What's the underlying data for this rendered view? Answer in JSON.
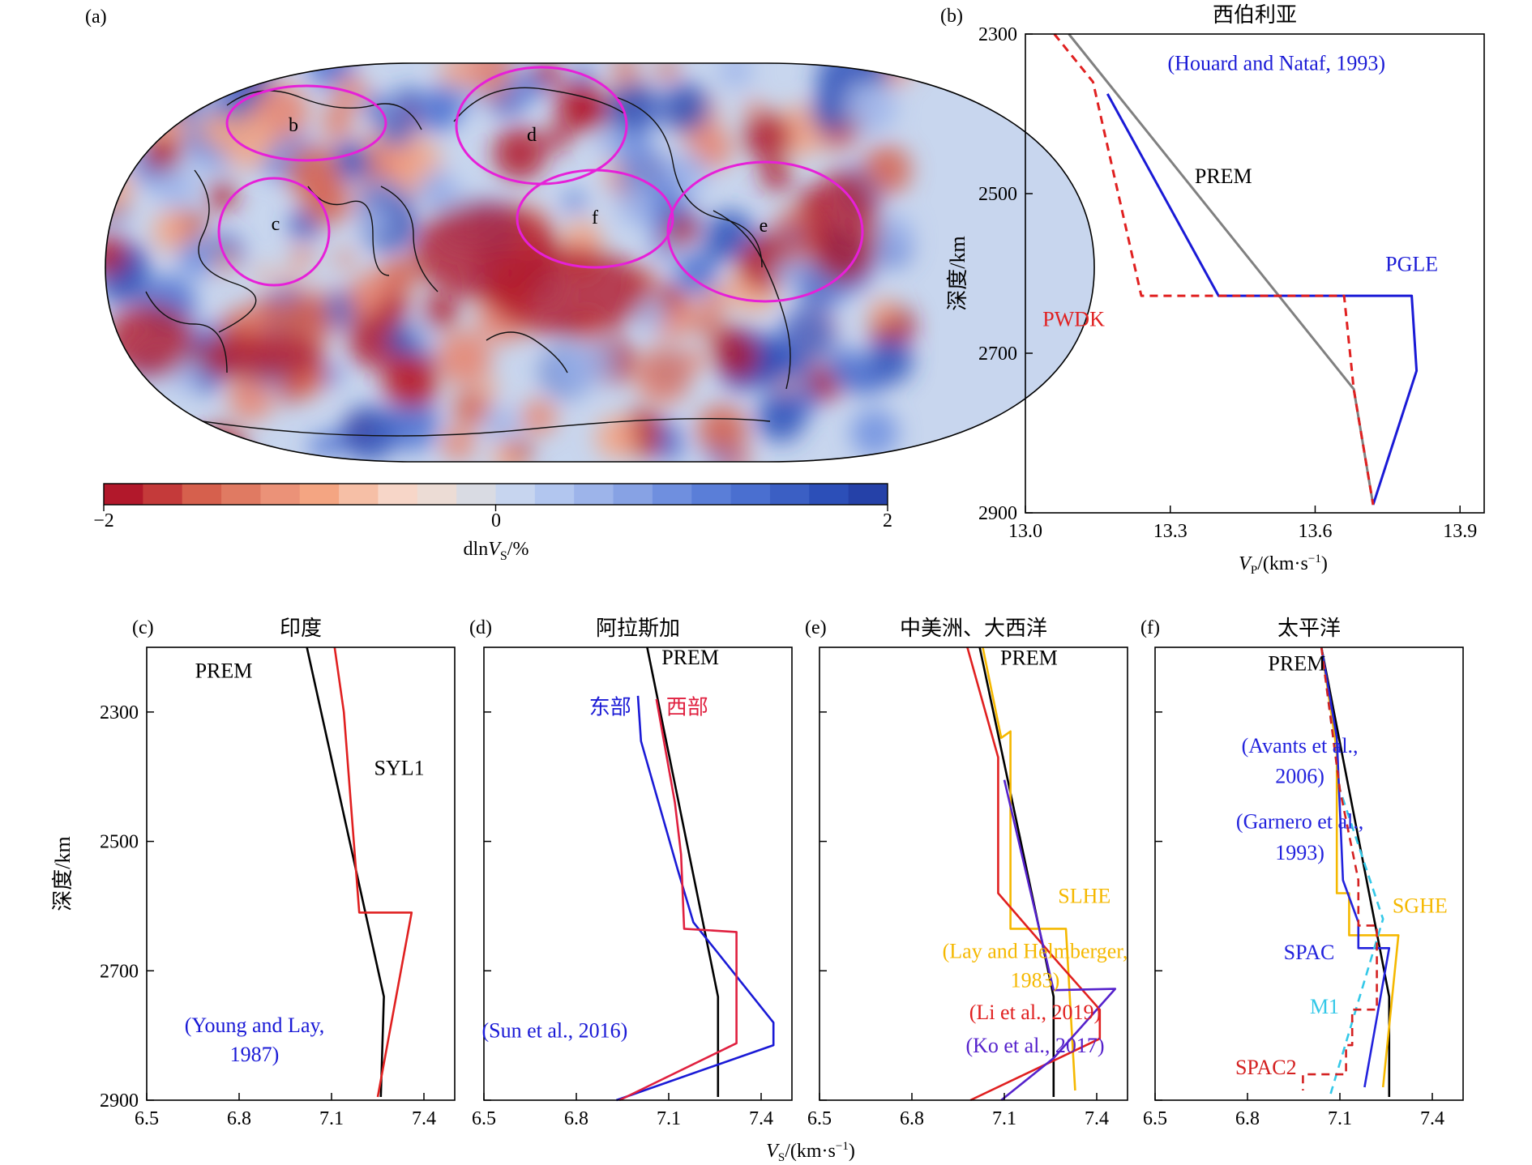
{
  "panel_a": {
    "label": "(a)",
    "region_labels": [
      "b",
      "c",
      "d",
      "e",
      "f"
    ],
    "colorbar": {
      "ticks": [
        "−2",
        "0",
        "2"
      ],
      "label_main": "dln",
      "label_var": "V",
      "label_sub": "S",
      "label_unit": "/%"
    }
  },
  "chart_data": [
    {
      "id": "b",
      "type": "line",
      "panel_label": "(b)",
      "title": "西伯利亚",
      "ylabel": "深度/km",
      "xlabel_var": "V",
      "xlabel_sub": "P",
      "xlabel_unit": "/(km·s",
      "xlabel_exp": "−1",
      "xlabel_close": ")",
      "xlim": [
        13.0,
        13.95
      ],
      "ylim": [
        2300,
        2900
      ],
      "y_inverted": true,
      "xticks": [
        13.0,
        13.3,
        13.6,
        13.9
      ],
      "xtick_labels": [
        "13.0",
        "13.3",
        "13.6",
        "13.9"
      ],
      "yticks": [
        2300,
        2500,
        2700,
        2900
      ],
      "ytick_labels": [
        "2300",
        "2500",
        "2700",
        "2900"
      ],
      "series": [
        {
          "name": "PREM",
          "color": "#808080",
          "dash": false,
          "x": [
            13.09,
            13.68,
            13.72
          ],
          "y": [
            2300,
            2745,
            2890
          ]
        },
        {
          "name": "PGLE",
          "color": "#1a1ad6",
          "dash": false,
          "x": [
            13.17,
            13.4,
            13.8,
            13.81,
            13.72
          ],
          "y": [
            2375,
            2628,
            2628,
            2722,
            2890
          ]
        },
        {
          "name": "PWDK",
          "color": "#e02020",
          "dash": true,
          "x": [
            13.06,
            13.14,
            13.24,
            13.66,
            13.68,
            13.72
          ],
          "y": [
            2300,
            2360,
            2628,
            2628,
            2745,
            2890
          ]
        }
      ],
      "annotations": [
        {
          "text": "(Houard and Nataf, 1993)",
          "color": "#1a1ad6",
          "x": 13.52,
          "y": 2345
        },
        {
          "text": "PREM",
          "color": "#000000",
          "x": 13.41,
          "y": 2487
        },
        {
          "text": "PGLE",
          "color": "#1a1ad6",
          "x": 13.8,
          "y": 2597
        },
        {
          "text": "PWDK",
          "color": "#e02020",
          "x": 13.1,
          "y": 2666
        }
      ]
    },
    {
      "id": "c",
      "type": "line",
      "panel_label": "(c)",
      "title": "印度",
      "ylabel": "深度/km",
      "xlim": [
        6.5,
        7.5
      ],
      "ylim": [
        2200,
        2900
      ],
      "y_inverted": true,
      "xticks": [
        6.5,
        6.8,
        7.1,
        7.4
      ],
      "xtick_labels": [
        "6.5",
        "6.8",
        "7.1",
        "7.4"
      ],
      "yticks": [
        2300,
        2500,
        2700,
        2900
      ],
      "ytick_labels": [
        "2300",
        "2500",
        "2700",
        "2900"
      ],
      "series": [
        {
          "name": "PREM",
          "color": "#000000",
          "dash": false,
          "x": [
            7.02,
            7.27,
            7.26
          ],
          "y": [
            2200,
            2740,
            2895
          ]
        },
        {
          "name": "SYL1",
          "color": "#e02020",
          "dash": false,
          "x": [
            7.11,
            7.14,
            7.19,
            7.36,
            7.25
          ],
          "y": [
            2200,
            2300,
            2610,
            2610,
            2895
          ]
        }
      ],
      "annotations": [
        {
          "text": "PREM",
          "color": "#000000",
          "x": 6.75,
          "y": 2247
        },
        {
          "text": "SYL1",
          "color": "#000000",
          "x": 7.32,
          "y": 2397
        },
        {
          "text": "(Young and Lay,",
          "color": "#1a1ad6",
          "x": 6.85,
          "y": 2795
        },
        {
          "text": "1987)",
          "color": "#1a1ad6",
          "x": 6.85,
          "y": 2840
        }
      ]
    },
    {
      "id": "d",
      "type": "line",
      "panel_label": "(d)",
      "title": "阿拉斯加",
      "ylabel": "",
      "xlim": [
        6.5,
        7.5
      ],
      "ylim": [
        2200,
        2900
      ],
      "y_inverted": true,
      "xticks": [
        6.5,
        6.8,
        7.1,
        7.4
      ],
      "xtick_labels": [
        "6.5",
        "6.8",
        "7.1",
        "7.4"
      ],
      "yticks": [
        2300,
        2500,
        2700,
        2900
      ],
      "ytick_labels": [
        "",
        "",
        "",
        ""
      ],
      "series": [
        {
          "name": "PREM",
          "color": "#000000",
          "dash": false,
          "x": [
            7.03,
            7.26,
            7.26
          ],
          "y": [
            2200,
            2740,
            2895
          ]
        },
        {
          "name": "东部",
          "color": "#1a1ad6",
          "dash": false,
          "x": [
            7.0,
            7.01,
            7.13,
            7.18,
            7.44,
            7.44,
            6.93
          ],
          "y": [
            2275,
            2345,
            2545,
            2625,
            2780,
            2815,
            2900
          ]
        },
        {
          "name": "西部",
          "color": "#e0203f",
          "dash": false,
          "x": [
            7.06,
            7.12,
            7.14,
            7.15,
            7.32,
            7.32,
            6.94
          ],
          "y": [
            2280,
            2440,
            2520,
            2635,
            2640,
            2812,
            2900
          ]
        }
      ],
      "annotations": [
        {
          "text": "PREM",
          "color": "#000000",
          "x": 7.17,
          "y": 2226
        },
        {
          "text": "东部",
          "color": "#1a1ad6",
          "x": 6.91,
          "y": 2303
        },
        {
          "text": "西部",
          "color": "#e0203f",
          "x": 7.16,
          "y": 2303
        },
        {
          "text": "(Sun et al., 2016)",
          "color": "#1a1ad6",
          "x": 6.73,
          "y": 2803
        }
      ]
    },
    {
      "id": "e",
      "type": "line",
      "panel_label": "(e)",
      "title": "中美洲、大西洋",
      "ylabel": "",
      "xlim": [
        6.5,
        7.5
      ],
      "ylim": [
        2200,
        2900
      ],
      "y_inverted": true,
      "xticks": [
        6.5,
        6.8,
        7.1,
        7.4
      ],
      "xtick_labels": [
        "6.5",
        "6.8",
        "7.1",
        "7.4"
      ],
      "yticks": [
        2300,
        2500,
        2700,
        2900
      ],
      "ytick_labels": [
        "",
        "",
        "",
        ""
      ],
      "series": [
        {
          "name": "PREM",
          "color": "#000000",
          "dash": false,
          "x": [
            7.02,
            7.26,
            7.26
          ],
          "y": [
            2200,
            2740,
            2895
          ]
        },
        {
          "name": "SLHE",
          "color": "#f5b800",
          "dash": false,
          "x": [
            7.03,
            7.09,
            7.12,
            7.12,
            7.3,
            7.33
          ],
          "y": [
            2200,
            2340,
            2330,
            2635,
            2635,
            2885
          ]
        },
        {
          "name": "(Li et al., 2019)",
          "color": "#e02020",
          "dash": false,
          "x": [
            6.98,
            7.08,
            7.08,
            7.28,
            7.41,
            7.41,
            6.99
          ],
          "y": [
            2200,
            2370,
            2580,
            2690,
            2760,
            2805,
            2900
          ]
        },
        {
          "name": "(Ko et al., 2017)",
          "color": "#5522cc",
          "dash": false,
          "x": [
            7.1,
            7.26,
            7.46,
            7.26,
            7.09
          ],
          "y": [
            2405,
            2730,
            2728,
            2835,
            2900
          ]
        }
      ],
      "annotations": [
        {
          "text": "PREM",
          "color": "#000000",
          "x": 7.18,
          "y": 2227
        },
        {
          "text": "SLHE",
          "color": "#f5b800",
          "x": 7.36,
          "y": 2595
        },
        {
          "text": "(Lay and Helmberger,",
          "color": "#f5b800",
          "x": 7.2,
          "y": 2680
        },
        {
          "text": "1983)",
          "color": "#f5b800",
          "x": 7.2,
          "y": 2725
        },
        {
          "text": "(Li et al., 2019)",
          "color": "#e02020",
          "x": 7.2,
          "y": 2775
        },
        {
          "text": "(Ko et al., 2017)",
          "color": "#5522cc",
          "x": 7.2,
          "y": 2826
        }
      ]
    },
    {
      "id": "f",
      "type": "line",
      "panel_label": "(f)",
      "title": "太平洋",
      "ylabel": "",
      "xlim": [
        6.5,
        7.5
      ],
      "ylim": [
        2200,
        2900
      ],
      "y_inverted": true,
      "xticks": [
        6.5,
        6.8,
        7.1,
        7.4
      ],
      "xtick_labels": [
        "6.5",
        "6.8",
        "7.1",
        "7.4"
      ],
      "yticks": [
        2300,
        2500,
        2700,
        2900
      ],
      "ytick_labels": [
        "",
        "",
        "",
        ""
      ],
      "series": [
        {
          "name": "PREM",
          "color": "#000000",
          "dash": false,
          "x": [
            7.04,
            7.26,
            7.26
          ],
          "y": [
            2200,
            2740,
            2895
          ]
        },
        {
          "name": "SGHE",
          "color": "#f5b800",
          "dash": false,
          "x": [
            7.04,
            7.09,
            7.09,
            7.13,
            7.13,
            7.29,
            7.24
          ],
          "y": [
            2200,
            2360,
            2580,
            2580,
            2645,
            2645,
            2880
          ]
        },
        {
          "name": "SPAC",
          "color": "#2222dd",
          "dash": false,
          "x": [
            7.04,
            7.09,
            7.11,
            7.16,
            7.16,
            7.26,
            7.18
          ],
          "y": [
            2200,
            2340,
            2560,
            2625,
            2665,
            2665,
            2880
          ]
        },
        {
          "name": "M1",
          "color": "#33c8e8",
          "dash": true,
          "x": [
            7.04,
            7.1,
            7.24,
            7.07
          ],
          "y": [
            2200,
            2420,
            2620,
            2890
          ]
        },
        {
          "name": "SPAC2",
          "color": "#d42020",
          "dash": true,
          "x": [
            7.04,
            7.1,
            7.16,
            7.16,
            7.22,
            7.22,
            7.14,
            7.14,
            7.12,
            7.12,
            6.98,
            6.98
          ],
          "y": [
            2200,
            2420,
            2560,
            2630,
            2630,
            2760,
            2760,
            2815,
            2815,
            2860,
            2860,
            2885
          ]
        }
      ],
      "annotations": [
        {
          "text": "PREM",
          "color": "#000000",
          "x": 6.96,
          "y": 2236
        },
        {
          "text": "(Avants et al.,",
          "color": "#2222dd",
          "x": 6.97,
          "y": 2363
        },
        {
          "text": "2006)",
          "color": "#2222dd",
          "x": 6.97,
          "y": 2410
        },
        {
          "text": "(Garnero et al.,",
          "color": "#2222dd",
          "x": 6.97,
          "y": 2480
        },
        {
          "text": "1993)",
          "color": "#2222dd",
          "x": 6.97,
          "y": 2528
        },
        {
          "text": "SGHE",
          "color": "#f5b800",
          "x": 7.36,
          "y": 2610
        },
        {
          "text": "SPAC",
          "color": "#2222dd",
          "x": 7.0,
          "y": 2682
        },
        {
          "text": "M1",
          "color": "#33c8e8",
          "x": 7.05,
          "y": 2766
        },
        {
          "text": "SPAC2",
          "color": "#d42020",
          "x": 6.86,
          "y": 2860
        }
      ]
    }
  ],
  "shared_xlabel": {
    "var": "V",
    "sub": "S",
    "unit": "/(km·s",
    "exp": "−1",
    "close": ")"
  }
}
